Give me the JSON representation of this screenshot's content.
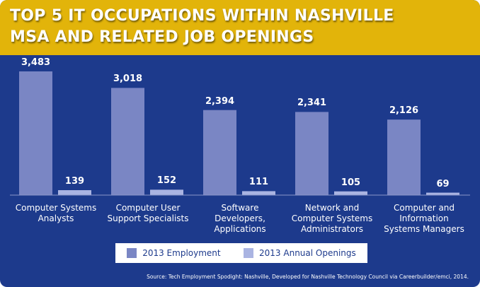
{
  "chart_data": {
    "type": "bar",
    "title": "TOP 5 IT OCCUPATIONS WITHIN NASHVILLE\nMSA AND RELATED JOB OPENINGS",
    "categories": [
      "Computer Systems\nAnalysts",
      "Computer User\nSupport Specialists",
      "Software\nDevelopers,\nApplications",
      "Network and\nComputer Systems\nAdministrators",
      "Computer and\nInformation\nSystems Managers"
    ],
    "series": [
      {
        "name": "2013 Employment",
        "color": "#7a86c4",
        "values": [
          3483,
          3018,
          2394,
          2341,
          2126
        ],
        "value_labels": [
          "3,483",
          "3,018",
          "2,394",
          "2,341",
          "2,126"
        ]
      },
      {
        "name": "2013 Annual Openings",
        "color": "#aab4e2",
        "values": [
          139,
          152,
          111,
          105,
          69
        ],
        "value_labels": [
          "139",
          "152",
          "111",
          "105",
          "69"
        ]
      }
    ],
    "source": "Source: Tech Employment Spodight: Nashville, Developed for Nashville Technology Council via Careerbuilder/emci, 2014."
  }
}
